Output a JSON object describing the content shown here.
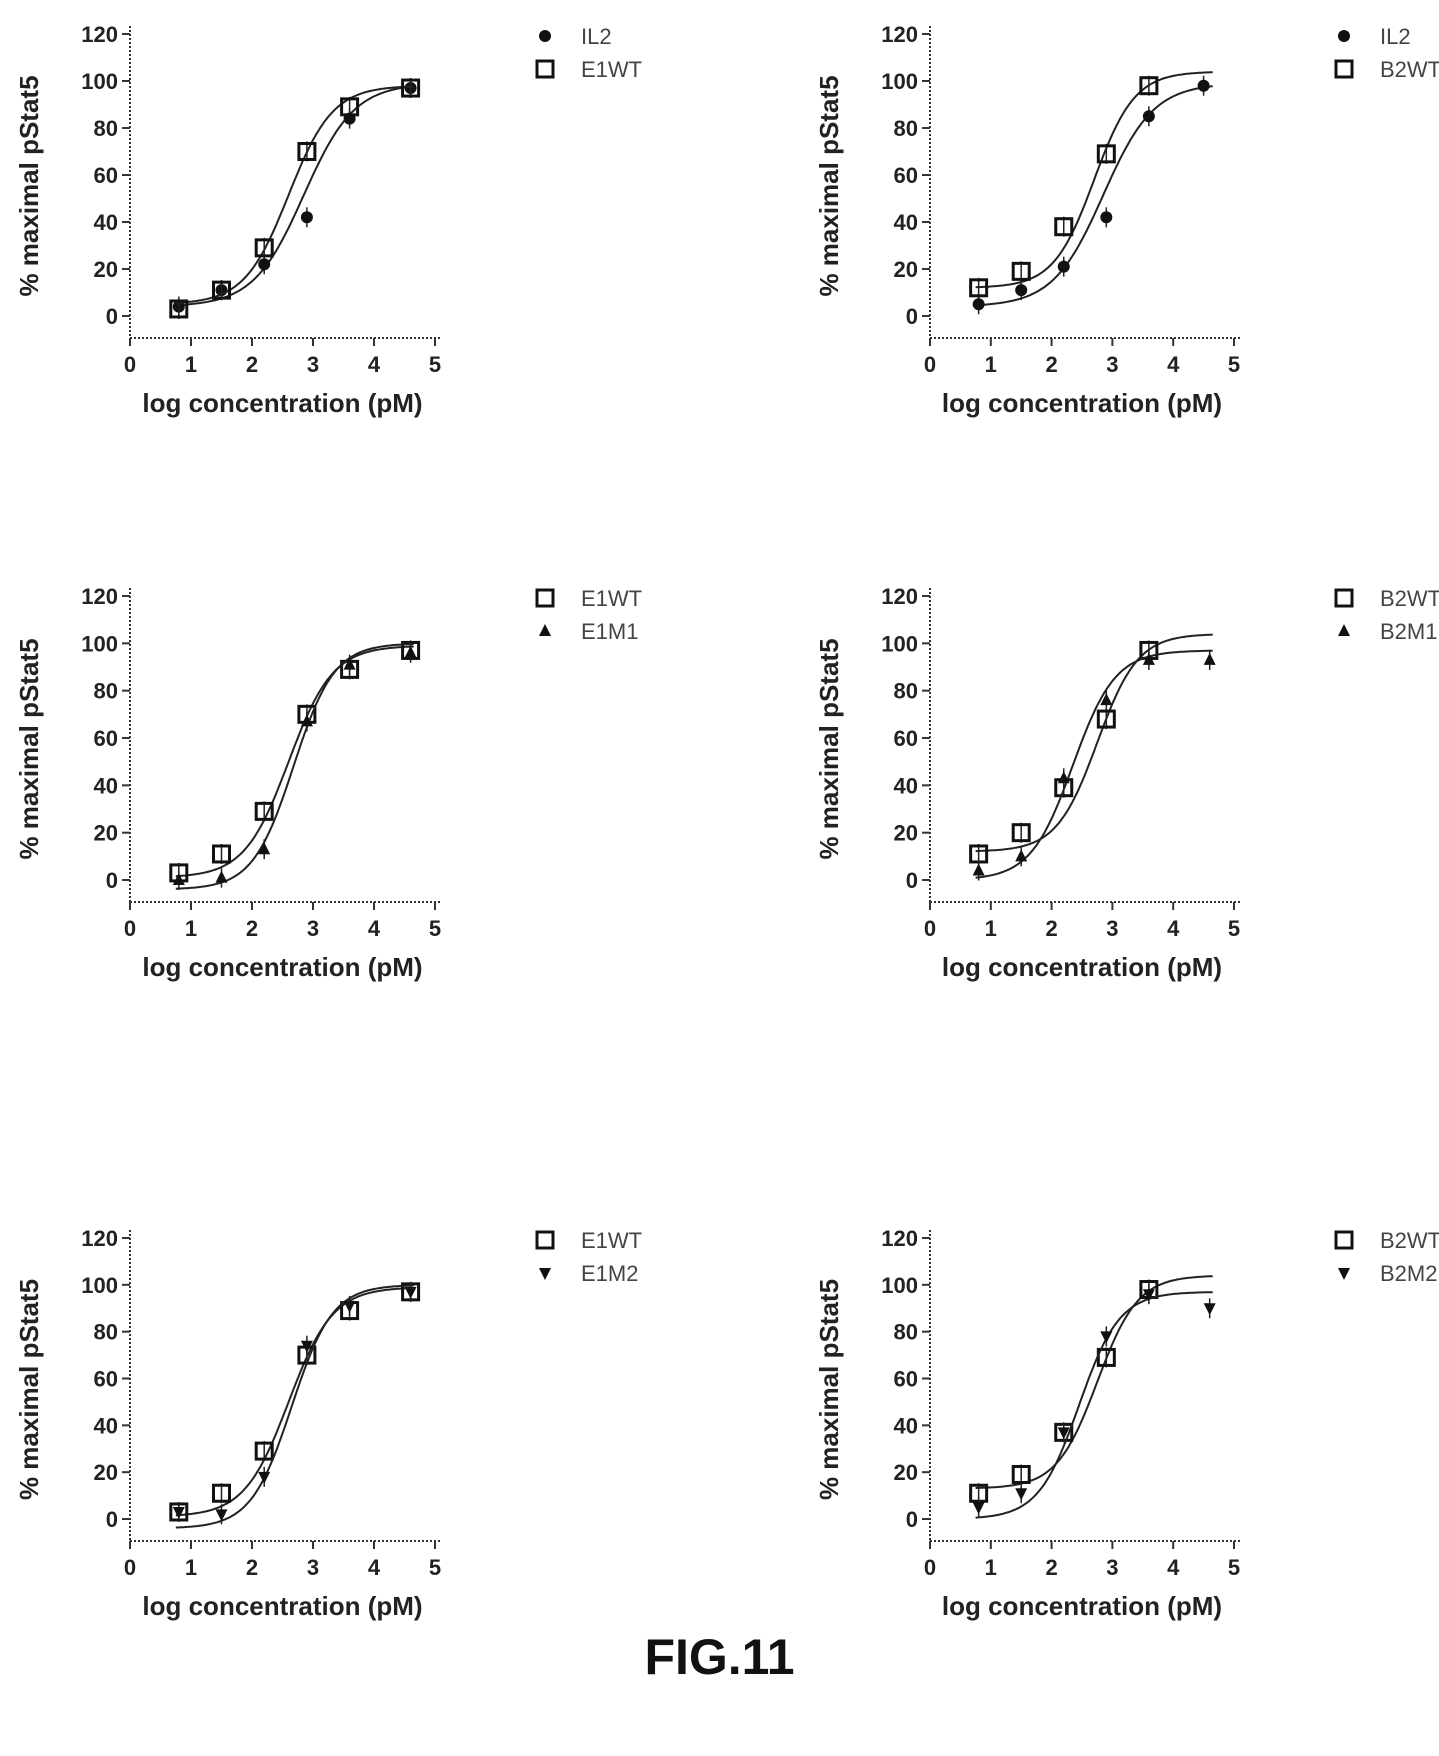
{
  "figure_label": "FIG.11",
  "chart_data": [
    {
      "type": "scatter",
      "xlabel": "log concentration (pM)",
      "ylabel": "% maximal pStat5",
      "xlim": [
        0,
        5
      ],
      "ylim": [
        -10,
        120
      ],
      "xticks": [
        "0",
        "1",
        "2",
        "3",
        "4",
        "5"
      ],
      "yticks": [
        "0",
        "20",
        "40",
        "60",
        "80",
        "100",
        "120"
      ],
      "legend_position": "right",
      "series": [
        {
          "name": "IL2",
          "marker": "star",
          "x": [
            0.8,
            1.5,
            2.2,
            2.9,
            3.6,
            4.6
          ],
          "y": [
            4,
            11,
            22,
            42,
            84,
            97
          ],
          "fit": {
            "bottom": 4,
            "top": 99,
            "ec50": 2.85,
            "hill": 1.05
          }
        },
        {
          "name": "E1WT",
          "marker": "square",
          "x": [
            0.8,
            1.5,
            2.2,
            2.9,
            3.6,
            4.6
          ],
          "y": [
            3,
            11,
            29,
            70,
            89,
            97
          ],
          "fit": {
            "bottom": 5,
            "top": 98,
            "ec50": 2.6,
            "hill": 1.2
          }
        }
      ]
    },
    {
      "type": "scatter",
      "xlabel": "log concentration (pM)",
      "ylabel": "% maximal pStat5",
      "xlim": [
        0,
        5
      ],
      "ylim": [
        -10,
        120
      ],
      "xticks": [
        "0",
        "1",
        "2",
        "3",
        "4",
        "5"
      ],
      "yticks": [
        "0",
        "20",
        "40",
        "60",
        "80",
        "100",
        "120"
      ],
      "legend_position": "right",
      "series": [
        {
          "name": "IL2",
          "marker": "star",
          "x": [
            0.8,
            1.5,
            2.2,
            2.9,
            3.6,
            4.5
          ],
          "y": [
            5,
            11,
            21,
            42,
            85,
            98
          ],
          "fit": {
            "bottom": 4,
            "top": 99,
            "ec50": 2.85,
            "hill": 1.05
          }
        },
        {
          "name": "B2WT",
          "marker": "square",
          "x": [
            0.8,
            1.5,
            2.2,
            2.9,
            3.6
          ],
          "y": [
            12,
            19,
            38,
            69,
            98
          ],
          "fit": {
            "bottom": 12,
            "top": 104,
            "ec50": 2.7,
            "hill": 1.3
          }
        }
      ]
    },
    {
      "type": "scatter",
      "xlabel": "log concentration (pM)",
      "ylabel": "% maximal pStat5",
      "xlim": [
        0,
        5
      ],
      "ylim": [
        -10,
        120
      ],
      "xticks": [
        "0",
        "1",
        "2",
        "3",
        "4",
        "5"
      ],
      "yticks": [
        "0",
        "20",
        "40",
        "60",
        "80",
        "100",
        "120"
      ],
      "legend_position": "right",
      "series": [
        {
          "name": "E1WT",
          "marker": "square",
          "x": [
            0.8,
            1.5,
            2.2,
            2.9,
            3.6,
            4.6
          ],
          "y": [
            3,
            11,
            29,
            70,
            89,
            97
          ],
          "fit": {
            "bottom": 1,
            "top": 99,
            "ec50": 2.6,
            "hill": 1.2
          }
        },
        {
          "name": "E1M1",
          "marker": "triangle",
          "x": [
            0.8,
            1.5,
            2.2,
            2.9,
            3.6,
            4.6
          ],
          "y": [
            0,
            1,
            13,
            67,
            91,
            96
          ],
          "fit": {
            "bottom": -4,
            "top": 100,
            "ec50": 2.68,
            "hill": 1.3
          }
        }
      ]
    },
    {
      "type": "scatter",
      "xlabel": "log concentration (pM)",
      "ylabel": "% maximal pStat5",
      "xlim": [
        0,
        5
      ],
      "ylim": [
        -10,
        120
      ],
      "xticks": [
        "0",
        "1",
        "2",
        "3",
        "4",
        "5"
      ],
      "yticks": [
        "0",
        "20",
        "40",
        "60",
        "80",
        "100",
        "120"
      ],
      "legend_position": "right",
      "series": [
        {
          "name": "B2WT",
          "marker": "square",
          "x": [
            0.8,
            1.5,
            2.2,
            2.9,
            3.6
          ],
          "y": [
            11,
            20,
            39,
            68,
            97
          ],
          "fit": {
            "bottom": 12,
            "top": 104,
            "ec50": 2.75,
            "hill": 1.3
          }
        },
        {
          "name": "B2M1",
          "marker": "triangle",
          "x": [
            0.8,
            1.5,
            2.2,
            2.9,
            3.6,
            4.6
          ],
          "y": [
            4,
            10,
            43,
            76,
            93,
            93
          ],
          "fit": {
            "bottom": 0,
            "top": 97,
            "ec50": 2.35,
            "hill": 1.25
          }
        }
      ]
    },
    {
      "type": "scatter",
      "xlabel": "log concentration (pM)",
      "ylabel": "% maximal pStat5",
      "xlim": [
        0,
        5
      ],
      "ylim": [
        -10,
        120
      ],
      "xticks": [
        "0",
        "1",
        "2",
        "3",
        "4",
        "5"
      ],
      "yticks": [
        "0",
        "20",
        "40",
        "60",
        "80",
        "100",
        "120"
      ],
      "legend_position": "right",
      "series": [
        {
          "name": "E1WT",
          "marker": "square",
          "x": [
            0.8,
            1.5,
            2.2,
            2.9,
            3.6,
            4.6
          ],
          "y": [
            3,
            11,
            29,
            70,
            89,
            97
          ],
          "fit": {
            "bottom": 1,
            "top": 99,
            "ec50": 2.6,
            "hill": 1.2
          }
        },
        {
          "name": "E1M2",
          "marker": "down-triangle",
          "x": [
            0.8,
            1.5,
            2.2,
            2.9,
            3.6,
            4.6
          ],
          "y": [
            3,
            2,
            18,
            74,
            91,
            97
          ],
          "fit": {
            "bottom": -4,
            "top": 100,
            "ec50": 2.65,
            "hill": 1.3
          }
        }
      ]
    },
    {
      "type": "scatter",
      "xlabel": "log concentration (pM)",
      "ylabel": "% maximal pStat5",
      "xlim": [
        0,
        5
      ],
      "ylim": [
        -10,
        120
      ],
      "xticks": [
        "0",
        "1",
        "2",
        "3",
        "4",
        "5"
      ],
      "yticks": [
        "0",
        "20",
        "40",
        "60",
        "80",
        "100",
        "120"
      ],
      "legend_position": "right",
      "series": [
        {
          "name": "B2WT",
          "marker": "square",
          "x": [
            0.8,
            1.5,
            2.2,
            2.9,
            3.6
          ],
          "y": [
            11,
            19,
            37,
            69,
            98
          ],
          "fit": {
            "bottom": 13,
            "top": 104,
            "ec50": 2.75,
            "hill": 1.3
          }
        },
        {
          "name": "B2M2",
          "marker": "down-triangle",
          "x": [
            0.8,
            1.5,
            2.2,
            2.9,
            3.6,
            4.6
          ],
          "y": [
            5,
            11,
            37,
            78,
            96,
            90
          ],
          "fit": {
            "bottom": 0,
            "top": 97,
            "ec50": 2.45,
            "hill": 1.3
          }
        }
      ]
    }
  ]
}
